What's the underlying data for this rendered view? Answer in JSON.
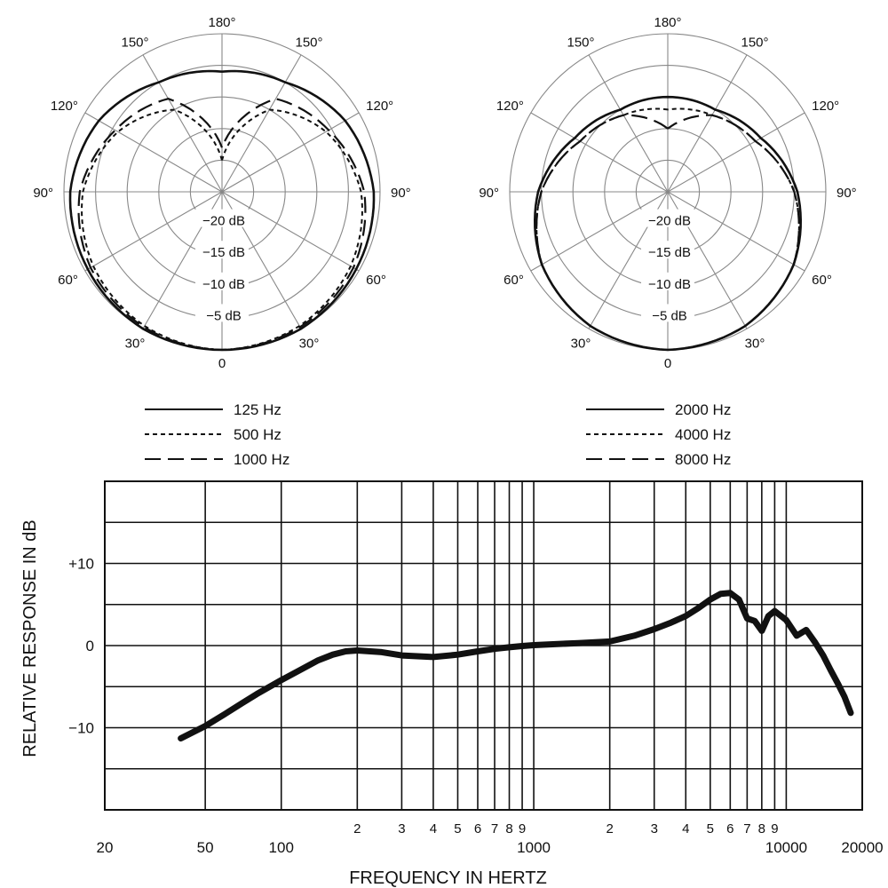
{
  "chart_data": [
    {
      "type": "polar",
      "angle_labels": [
        "180°",
        "150°",
        "150°",
        "120°",
        "120°",
        "90°",
        "90°",
        "60°",
        "60°",
        "30°",
        "30°",
        "0"
      ],
      "ring_labels": [
        "−20 dB",
        "−15 dB",
        "−10 dB",
        "−5 dB"
      ],
      "series": [
        {
          "name": "125 Hz",
          "style": "solid",
          "level_db_by_angle": {
            "0": 0,
            "30": 0,
            "60": -0.5,
            "90": -1,
            "120": -2.5,
            "150": -5,
            "180": -6
          }
        },
        {
          "name": "500 Hz",
          "style": "dotted",
          "level_db_by_angle": {
            "0": 0,
            "30": -0.5,
            "60": -1.5,
            "90": -3,
            "120": -6,
            "150": -10,
            "180": -20
          }
        },
        {
          "name": "1000 Hz",
          "style": "dashed",
          "level_db_by_angle": {
            "0": 0,
            "30": -0.3,
            "60": -1,
            "90": -2.5,
            "120": -5.5,
            "150": -8,
            "180": -18
          }
        }
      ]
    },
    {
      "type": "polar",
      "angle_labels": [
        "180°",
        "150°",
        "150°",
        "120°",
        "120°",
        "90°",
        "90°",
        "60°",
        "60°",
        "30°",
        "30°",
        "0"
      ],
      "ring_labels": [
        "−20 dB",
        "−15 dB",
        "−10 dB",
        "−5 dB"
      ],
      "series": [
        {
          "name": "2000 Hz",
          "style": "solid",
          "level_db_by_angle": {
            "0": 0,
            "30": -0.5,
            "60": -2,
            "90": -4.5,
            "120": -8,
            "150": -10,
            "180": -10
          }
        },
        {
          "name": "4000 Hz",
          "style": "dotted",
          "level_db_by_angle": {
            "0": 0,
            "30": -0.5,
            "60": -2,
            "90": -5,
            "120": -9,
            "150": -11,
            "180": -12
          }
        },
        {
          "name": "8000 Hz",
          "style": "dashed",
          "level_db_by_angle": {
            "0": 0,
            "30": -0.5,
            "60": -2,
            "90": -5,
            "120": -9,
            "150": -11,
            "180": -15
          }
        }
      ]
    },
    {
      "type": "line",
      "xscale": "log",
      "xlim": [
        20,
        20000
      ],
      "ylim": [
        -20,
        20
      ],
      "xlabel": "FREQUENCY IN HERTZ",
      "ylabel": "RELATIVE RESPONSE IN dB",
      "x_tick_labels": [
        {
          "x": 20,
          "label": "20"
        },
        {
          "x": 50,
          "label": "50"
        },
        {
          "x": 100,
          "label": "100"
        },
        {
          "x": 200,
          "label": "2"
        },
        {
          "x": 300,
          "label": "3"
        },
        {
          "x": 400,
          "label": "4"
        },
        {
          "x": 500,
          "label": "5"
        },
        {
          "x": 600,
          "label": "6"
        },
        {
          "x": 700,
          "label": "7"
        },
        {
          "x": 800,
          "label": "8"
        },
        {
          "x": 900,
          "label": "9"
        },
        {
          "x": 1000,
          "label": "1000"
        },
        {
          "x": 2000,
          "label": "2"
        },
        {
          "x": 3000,
          "label": "3"
        },
        {
          "x": 4000,
          "label": "4"
        },
        {
          "x": 5000,
          "label": "5"
        },
        {
          "x": 6000,
          "label": "6"
        },
        {
          "x": 7000,
          "label": "7"
        },
        {
          "x": 8000,
          "label": "8"
        },
        {
          "x": 9000,
          "label": "9"
        },
        {
          "x": 10000,
          "label": "10000"
        },
        {
          "x": 20000,
          "label": "20000"
        }
      ],
      "y_tick_labels": [
        {
          "y": 10,
          "label": "+10"
        },
        {
          "y": 0,
          "label": "0"
        },
        {
          "y": -10,
          "label": "−10"
        }
      ],
      "y_gridlines": [
        -20,
        -15,
        -10,
        -5,
        0,
        5,
        10,
        15,
        20
      ],
      "x_gridlines": [
        20,
        50,
        100,
        200,
        300,
        400,
        500,
        600,
        700,
        800,
        900,
        1000,
        2000,
        3000,
        4000,
        5000,
        6000,
        7000,
        8000,
        9000,
        10000,
        20000
      ],
      "series": [
        {
          "x": [
            40,
            50,
            60,
            70,
            80,
            100,
            120,
            140,
            160,
            180,
            200,
            250,
            300,
            400,
            500,
            600,
            700,
            800,
            900,
            1000,
            1500,
            2000,
            2500,
            3000,
            3500,
            4000,
            4500,
            5000,
            5500,
            6000,
            6500,
            7000,
            7500,
            8000,
            8500,
            9000,
            10000,
            11000,
            12000,
            13000,
            14000,
            15000,
            16000,
            17000,
            18000
          ],
          "y": [
            -11.3,
            -9.8,
            -8.3,
            -7.0,
            -5.9,
            -4.2,
            -2.9,
            -1.8,
            -1.1,
            -0.7,
            -0.6,
            -0.8,
            -1.2,
            -1.4,
            -1.1,
            -0.7,
            -0.4,
            -0.2,
            -0.05,
            0.05,
            0.3,
            0.5,
            1.2,
            2.0,
            2.8,
            3.6,
            4.6,
            5.6,
            6.3,
            6.4,
            5.6,
            3.3,
            3.0,
            1.8,
            3.6,
            4.2,
            3.1,
            1.2,
            1.9,
            0.4,
            -1.2,
            -3.0,
            -4.6,
            -6.2,
            -8.2
          ]
        }
      ]
    }
  ]
}
